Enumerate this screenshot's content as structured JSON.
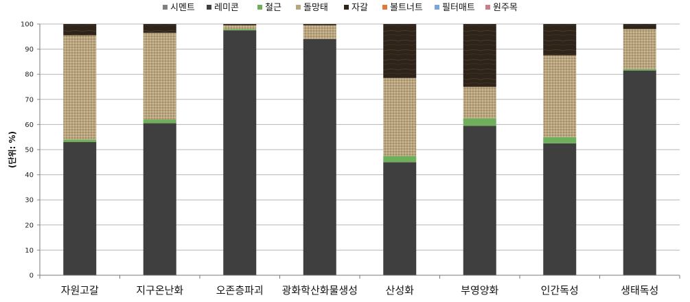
{
  "chart_data": {
    "type": "bar",
    "stacked": true,
    "title": "",
    "xlabel": "",
    "ylabel": "(단위: %)",
    "ylim": [
      0,
      100
    ],
    "yticks": [
      0,
      10,
      20,
      30,
      40,
      50,
      60,
      70,
      80,
      90,
      100
    ],
    "grid": true,
    "legend_position": "top",
    "categories": [
      "자원고갈",
      "지구온난화",
      "오존층파괴",
      "광화학산화물생성",
      "산성화",
      "부영양화",
      "인간독성",
      "생태독성"
    ],
    "series": [
      {
        "name": "시멘트",
        "color": "#808080",
        "values": [
          0,
          0,
          0,
          0,
          0,
          0,
          0,
          0
        ]
      },
      {
        "name": "레미콘",
        "color": "#3f3f3f",
        "values": [
          53,
          60.5,
          97.5,
          94,
          45,
          59.5,
          52.5,
          81.5
        ]
      },
      {
        "name": "철근",
        "color": "#6fae5a",
        "values": [
          1,
          1.5,
          0.5,
          0,
          2.5,
          3,
          2.5,
          0.5
        ]
      },
      {
        "name": "돌망태",
        "color": "#b9a57f",
        "values": [
          41.5,
          34.5,
          1.5,
          5.5,
          31,
          12.5,
          32.5,
          16
        ]
      },
      {
        "name": "자갈",
        "color": "#2e241a",
        "values": [
          4.5,
          3.5,
          0.5,
          0.5,
          21.5,
          25,
          12.5,
          2
        ]
      },
      {
        "name": "볼트너트",
        "color": "#e07a3c",
        "values": [
          0,
          0,
          0,
          0,
          0,
          0,
          0,
          0
        ]
      },
      {
        "name": "필터매트",
        "color": "#7aa7d9",
        "values": [
          0,
          0,
          0,
          0,
          0,
          0,
          0,
          0
        ]
      },
      {
        "name": "원주목",
        "color": "#c77f8a",
        "values": [
          0,
          0,
          0,
          0,
          0,
          0,
          0,
          0
        ]
      }
    ]
  }
}
